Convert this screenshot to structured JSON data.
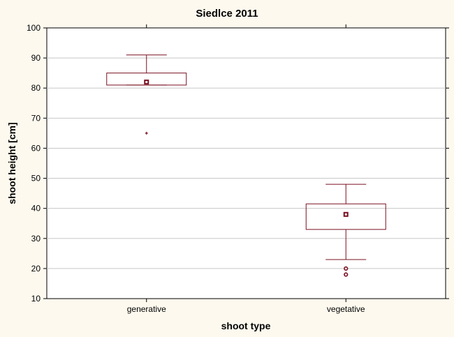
{
  "chart_data": {
    "type": "boxplot",
    "title": "Siedlce 2011",
    "xlabel": "shoot type",
    "ylabel": "shoot height [cm]",
    "ylim": [
      10,
      100
    ],
    "yticks": [
      10,
      20,
      30,
      40,
      50,
      60,
      70,
      80,
      90,
      100
    ],
    "grid": true,
    "categories": [
      "generative",
      "vegetative"
    ],
    "boxes": [
      {
        "category": "generative",
        "whisker_low": 81,
        "q1": 81,
        "median": 82,
        "q3": 85,
        "whisker_high": 91,
        "outliers": [
          65
        ],
        "extremes": []
      },
      {
        "category": "vegetative",
        "whisker_low": 23,
        "q1": 33,
        "median": 38,
        "q3": 41.5,
        "whisker_high": 48,
        "outliers": [],
        "extremes": [
          20,
          18
        ]
      }
    ],
    "colors": {
      "box": "#7a1020",
      "grid": "#c8c8c8",
      "background": "#fdf9ee",
      "plot_area": "#ffffff"
    }
  }
}
